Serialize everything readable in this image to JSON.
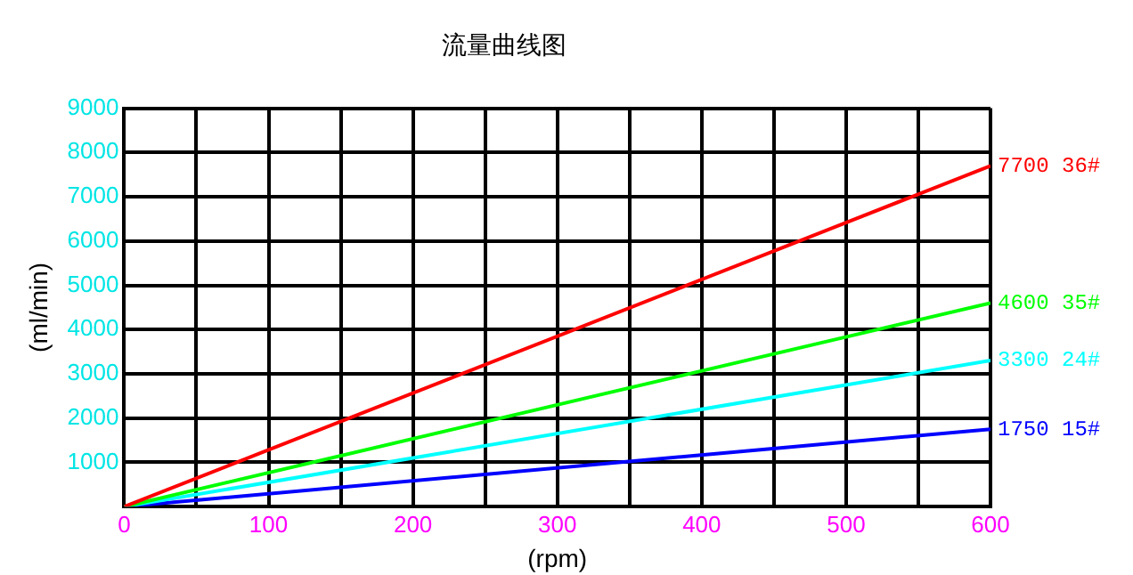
{
  "chart_data": {
    "type": "line",
    "title": "流量曲线图",
    "xlabel": "(rpm)",
    "ylabel": "(ml/min)",
    "x": [
      0,
      600
    ],
    "xlim": [
      0,
      600
    ],
    "ylim": [
      0,
      9000
    ],
    "xticks": [
      0,
      {
        "value": 50,
        "label": null
      },
      100,
      {
        "value": 150,
        "label": null
      },
      200,
      {
        "value": 250,
        "label": null
      },
      300,
      {
        "value": 350,
        "label": null
      },
      400,
      {
        "value": 450,
        "label": null
      },
      500,
      {
        "value": 550,
        "label": null
      },
      600
    ],
    "yticks": [
      {
        "value": 0,
        "label": null
      },
      1000,
      2000,
      3000,
      4000,
      5000,
      6000,
      7000,
      8000,
      9000
    ],
    "grid": true,
    "legend": false,
    "marker": "none",
    "line_style": "solid",
    "series": [
      {
        "name": "7700 36#",
        "color": "#ff0000",
        "values": [
          0,
          7700
        ]
      },
      {
        "name": "4600 35#",
        "color": "#00ff00",
        "values": [
          0,
          4600
        ]
      },
      {
        "name": "3300 24#",
        "color": "#00ffff",
        "values": [
          0,
          3300
        ]
      },
      {
        "name": "1750 15#",
        "color": "#0000ff",
        "values": [
          0,
          1750
        ]
      }
    ]
  }
}
